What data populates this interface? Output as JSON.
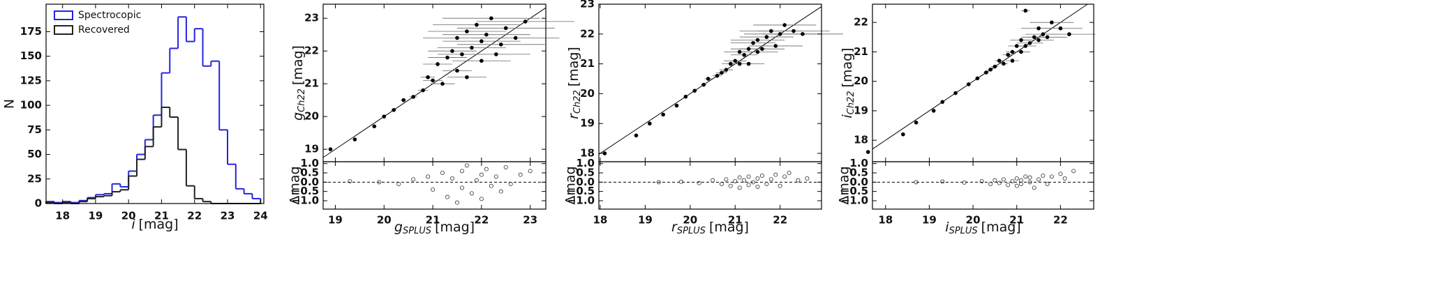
{
  "chart_data": [
    {
      "type": "histogram",
      "bins": [
        17.5,
        17.75,
        18.0,
        18.25,
        18.5,
        18.75,
        19.0,
        19.25,
        19.5,
        19.75,
        20.0,
        20.25,
        20.5,
        20.75,
        21.0,
        21.25,
        21.5,
        21.75,
        22.0,
        22.25,
        22.5,
        22.75,
        23.0,
        23.25,
        23.5,
        23.75,
        24.0
      ],
      "series": [
        {
          "name": "Spectrocopic",
          "color": "#2424e0",
          "values": [
            2,
            1,
            2,
            1,
            3,
            6,
            9,
            10,
            20,
            17,
            33,
            50,
            65,
            90,
            133,
            158,
            190,
            165,
            178,
            140,
            145,
            75,
            40,
            15,
            10,
            5
          ]
        },
        {
          "name": "Recovered",
          "color": "#222222",
          "values": [
            1,
            0,
            1,
            0,
            2,
            5,
            7,
            8,
            12,
            14,
            28,
            45,
            58,
            78,
            98,
            88,
            55,
            18,
            5,
            2,
            0,
            0,
            0,
            0,
            0,
            0
          ]
        }
      ],
      "xlim": [
        17.5,
        24.1
      ],
      "ylim": [
        0,
        203
      ],
      "xticks": [
        18,
        19,
        20,
        21,
        22,
        23,
        24
      ],
      "yticks": [
        0,
        25,
        50,
        75,
        100,
        125,
        150,
        175
      ],
      "x_label": {
        "symbol": "i",
        "unit": "[mag]"
      },
      "y_label": "N",
      "legend": "upper left"
    },
    {
      "type": "scatter",
      "color": "#000000",
      "x": [
        18.9,
        19.4,
        19.8,
        20.0,
        20.2,
        20.4,
        20.6,
        20.8,
        20.9,
        21.0,
        21.1,
        21.2,
        21.3,
        21.4,
        21.5,
        21.5,
        21.6,
        21.7,
        21.7,
        21.8,
        21.9,
        22.0,
        22.0,
        22.1,
        22.2,
        22.3,
        22.4,
        22.5,
        22.7,
        22.9
      ],
      "y": [
        19.0,
        19.3,
        19.7,
        20.0,
        20.2,
        20.5,
        20.6,
        20.8,
        21.2,
        21.1,
        21.6,
        21.0,
        21.8,
        22.0,
        21.4,
        22.4,
        21.9,
        22.6,
        21.2,
        22.1,
        22.8,
        21.7,
        22.3,
        22.5,
        23.0,
        21.9,
        22.2,
        22.7,
        22.4,
        22.9
      ],
      "xerr": [
        0.02,
        0.03,
        0.04,
        0.04,
        0.05,
        0.06,
        0.08,
        0.1,
        0.15,
        0.2,
        0.3,
        0.25,
        0.4,
        0.5,
        0.3,
        0.7,
        0.5,
        0.8,
        0.4,
        0.7,
        0.9,
        0.6,
        0.8,
        0.9,
        1.0,
        0.7,
        0.9,
        1.0,
        0.9,
        1.0
      ],
      "xlim": [
        18.75,
        23.32
      ],
      "ylim": [
        18.62,
        23.43
      ],
      "xticks": [
        19,
        20,
        21,
        22,
        23
      ],
      "yticks": [
        19,
        20,
        21,
        22,
        23
      ],
      "x_label": {
        "symbol": "g",
        "subscript": "SPLUS",
        "unit": "[mag]"
      },
      "y_label": {
        "symbol": "g",
        "subscript": "Ch22",
        "unit": "[mag]"
      },
      "residual": {
        "x": [
          19.3,
          19.9,
          20.3,
          20.6,
          20.9,
          21.0,
          21.2,
          21.3,
          21.4,
          21.5,
          21.6,
          21.6,
          21.7,
          21.8,
          21.9,
          22.0,
          22.0,
          22.1,
          22.2,
          22.3,
          22.4,
          22.5,
          22.6,
          22.8,
          23.0
        ],
        "y": [
          0.05,
          0.0,
          -0.1,
          0.15,
          0.3,
          -0.4,
          0.5,
          -0.8,
          0.2,
          -1.1,
          0.6,
          -0.3,
          0.9,
          -0.6,
          0.1,
          -0.9,
          0.4,
          0.7,
          -0.2,
          0.3,
          -0.5,
          0.8,
          -0.1,
          0.4,
          0.6
        ],
        "ylim": [
          -1.45,
          1.1
        ],
        "yticks": [
          {
            "value": -1.0,
            "label": "−1.0"
          },
          {
            "value": -0.5,
            "label": "−0.5"
          },
          {
            "value": 0.0,
            "label": "0.0"
          },
          {
            "value": 0.5,
            "label": "0.5"
          },
          {
            "value": 1.0,
            "label": "1.0"
          }
        ],
        "y_label": "Δmag"
      }
    },
    {
      "type": "scatter",
      "color": "#000000",
      "x": [
        18.1,
        18.8,
        19.1,
        19.4,
        19.7,
        19.9,
        20.1,
        20.3,
        20.4,
        20.6,
        20.7,
        20.8,
        20.9,
        21.0,
        21.1,
        21.1,
        21.2,
        21.3,
        21.3,
        21.4,
        21.5,
        21.5,
        21.6,
        21.7,
        21.8,
        21.9,
        22.0,
        22.1,
        22.3,
        22.5
      ],
      "y": [
        18.0,
        18.6,
        19.0,
        19.3,
        19.6,
        19.9,
        20.1,
        20.3,
        20.5,
        20.6,
        20.7,
        20.8,
        21.0,
        21.1,
        21.0,
        21.4,
        21.3,
        21.5,
        21.0,
        21.7,
        21.4,
        21.8,
        21.5,
        21.9,
        22.1,
        21.6,
        22.0,
        22.3,
        22.1,
        22.0
      ],
      "xerr": [
        0.01,
        0.02,
        0.02,
        0.03,
        0.03,
        0.04,
        0.05,
        0.06,
        0.08,
        0.1,
        0.12,
        0.15,
        0.2,
        0.25,
        0.3,
        0.35,
        0.3,
        0.4,
        0.35,
        0.5,
        0.45,
        0.6,
        0.5,
        0.6,
        0.7,
        0.6,
        0.8,
        0.7,
        0.8,
        0.9
      ],
      "xlim": [
        17.97,
        22.92
      ],
      "ylim": [
        17.72,
        23.0
      ],
      "xticks": [
        18,
        19,
        20,
        21,
        22
      ],
      "yticks": [
        18,
        19,
        20,
        21,
        22,
        23
      ],
      "x_label": {
        "symbol": "r",
        "subscript": "SPLUS",
        "unit": "[mag]"
      },
      "y_label": {
        "symbol": "r",
        "subscript": "Ch22",
        "unit": "[mag]"
      },
      "residual": {
        "x": [
          19.3,
          19.8,
          20.2,
          20.5,
          20.7,
          20.8,
          20.9,
          21.0,
          21.1,
          21.1,
          21.2,
          21.3,
          21.3,
          21.4,
          21.5,
          21.5,
          21.6,
          21.7,
          21.8,
          21.9,
          22.0,
          22.1,
          22.2,
          22.4,
          22.6
        ],
        "y": [
          0.0,
          0.02,
          -0.05,
          0.1,
          -0.1,
          0.15,
          -0.2,
          0.05,
          0.25,
          -0.3,
          0.1,
          -0.15,
          0.3,
          0.0,
          -0.25,
          0.2,
          0.35,
          -0.1,
          0.15,
          0.4,
          -0.2,
          0.3,
          0.5,
          0.1,
          0.2
        ],
        "ylim": [
          -1.45,
          1.1
        ],
        "yticks": [
          {
            "value": -1.0,
            "label": "−1.0"
          },
          {
            "value": -0.5,
            "label": "−0.5"
          },
          {
            "value": 0.0,
            "label": "0.0"
          },
          {
            "value": 0.5,
            "label": "0.5"
          },
          {
            "value": 1.0,
            "label": "1.0"
          }
        ],
        "y_label": "Δmag"
      }
    },
    {
      "type": "scatter",
      "color": "#000000",
      "x": [
        17.6,
        18.4,
        18.7,
        19.1,
        19.3,
        19.6,
        19.9,
        20.1,
        20.3,
        20.4,
        20.5,
        20.6,
        20.7,
        20.8,
        20.9,
        20.9,
        21.0,
        21.1,
        21.1,
        21.2,
        21.2,
        21.3,
        21.4,
        21.5,
        21.5,
        21.6,
        21.7,
        21.8,
        22.0,
        22.2
      ],
      "y": [
        17.6,
        18.2,
        18.6,
        19.0,
        19.3,
        19.6,
        19.9,
        20.1,
        20.3,
        20.4,
        20.5,
        20.7,
        20.6,
        20.9,
        21.0,
        20.7,
        21.2,
        21.0,
        21.4,
        21.2,
        22.4,
        21.3,
        21.5,
        21.4,
        21.8,
        21.6,
        21.5,
        22.0,
        21.8,
        21.6
      ],
      "xerr": [
        0.01,
        0.01,
        0.02,
        0.02,
        0.03,
        0.03,
        0.04,
        0.05,
        0.06,
        0.07,
        0.08,
        0.1,
        0.1,
        0.12,
        0.15,
        0.15,
        0.2,
        0.2,
        0.25,
        0.25,
        0.1,
        0.3,
        0.3,
        0.35,
        0.4,
        0.4,
        0.45,
        0.5,
        0.5,
        0.6
      ],
      "xlim": [
        17.7,
        22.76
      ],
      "ylim": [
        17.27,
        22.62
      ],
      "xticks": [
        18,
        19,
        20,
        21,
        22
      ],
      "yticks": [
        18,
        19,
        20,
        21,
        22
      ],
      "x_label": {
        "symbol": "i",
        "subscript": "SPLUS",
        "unit": "[mag]"
      },
      "y_label": {
        "symbol": "i",
        "subscript": "Ch22",
        "unit": "[mag]"
      },
      "residual": {
        "x": [
          18.7,
          19.3,
          19.8,
          20.2,
          20.4,
          20.5,
          20.6,
          20.7,
          20.8,
          20.9,
          21.0,
          21.0,
          21.1,
          21.1,
          21.2,
          21.3,
          21.3,
          21.4,
          21.5,
          21.6,
          21.7,
          21.8,
          22.0,
          22.1,
          22.3
        ],
        "y": [
          0.0,
          0.03,
          -0.02,
          0.05,
          -0.1,
          0.1,
          -0.05,
          0.15,
          -0.15,
          0.05,
          0.2,
          -0.2,
          0.1,
          -0.1,
          0.3,
          0.0,
          0.25,
          -0.3,
          0.15,
          0.35,
          -0.1,
          0.3,
          0.45,
          0.2,
          0.6
        ],
        "ylim": [
          -1.45,
          1.1
        ],
        "yticks": [
          {
            "value": -1.0,
            "label": "−1.0"
          },
          {
            "value": -0.5,
            "label": "−0.5"
          },
          {
            "value": 0.0,
            "label": "0.0"
          },
          {
            "value": 0.5,
            "label": "0.5"
          },
          {
            "value": 1.0,
            "label": "1.0"
          }
        ],
        "y_label": "Δmag"
      }
    }
  ]
}
